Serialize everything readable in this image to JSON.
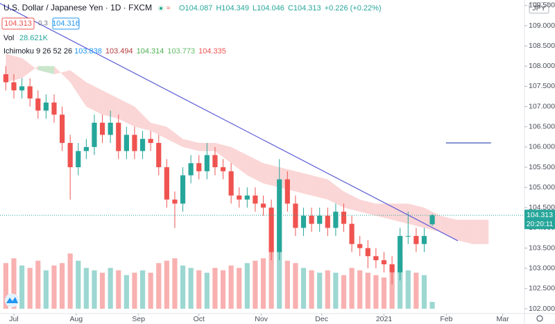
{
  "chart_data": {
    "type": "candlestick",
    "title": "U.S. Dollar / Japanese Yen · 1D · FXCM",
    "ohlc_readout": [
      "O104.087",
      "H104.349",
      "L104.046",
      "C104.313",
      "+0.226 (+0.22%)"
    ],
    "readout_color": "#26a69a",
    "trade_buttons": {
      "sell": "104.313",
      "spread": "0.3",
      "buy": "104.316"
    },
    "volume_legend": {
      "name": "Vol",
      "value": "28.621K"
    },
    "ichimoku_legend": {
      "name": "Ichimoku 9 26 52 26",
      "values": [
        "103.838",
        "103.494",
        "104.314",
        "103.773",
        "104.335"
      ],
      "colors": [
        "#2196f3",
        "#b23a3a",
        "#4caf50",
        "#66bb6a",
        "#ef5350"
      ]
    },
    "currency": "JPY",
    "last_price_label": "104.313",
    "countdown": "20:20:11",
    "x": [
      -4,
      0,
      4,
      8,
      12,
      16,
      20,
      24,
      28,
      32,
      36,
      40,
      44,
      48,
      52,
      56,
      60,
      64,
      68,
      72,
      76,
      80,
      84,
      88,
      92,
      96,
      100,
      104,
      108,
      112,
      116,
      120,
      124,
      128,
      132,
      136,
      140,
      144,
      148,
      152,
      156,
      160,
      164,
      168,
      172,
      176,
      180,
      184,
      188,
      192,
      196,
      200,
      204,
      208
    ],
    "open": [
      107.8,
      107.6,
      107.4,
      107.5,
      107.2,
      106.9,
      107.1,
      106.8,
      106.1,
      105.5,
      105.9,
      106.0,
      106.6,
      106.3,
      106.6,
      105.9,
      106.3,
      105.9,
      106.2,
      106.1,
      105.5,
      104.7,
      104.6,
      105.3,
      105.6,
      105.4,
      105.8,
      105.5,
      105.4,
      104.8,
      104.7,
      104.8,
      104.6,
      104.5,
      103.4,
      105.2,
      104.6,
      104.0,
      104.3,
      104.1,
      104.3,
      104.0,
      104.4,
      104.1,
      103.6,
      103.5,
      103.3,
      103.2,
      103.1,
      102.9,
      103.8,
      103.8,
      103.6,
      104.087
    ],
    "high": [
      108.0,
      107.8,
      107.7,
      107.7,
      107.4,
      107.3,
      107.3,
      107.0,
      106.3,
      106.1,
      106.2,
      106.8,
      106.8,
      106.9,
      106.8,
      106.5,
      106.5,
      106.4,
      106.4,
      106.3,
      105.7,
      104.9,
      105.5,
      105.8,
      105.8,
      106.1,
      106.0,
      105.7,
      105.6,
      105.0,
      105.0,
      105.0,
      104.8,
      104.7,
      105.7,
      105.4,
      104.8,
      104.5,
      104.5,
      104.5,
      104.5,
      104.6,
      104.6,
      104.3,
      103.8,
      103.7,
      103.5,
      103.4,
      103.3,
      104.0,
      104.4,
      104.0,
      104.0,
      104.349
    ],
    "low": [
      107.4,
      107.2,
      107.2,
      107.0,
      106.7,
      106.7,
      106.6,
      105.9,
      104.7,
      105.3,
      105.7,
      105.8,
      106.1,
      106.1,
      105.7,
      105.7,
      105.7,
      105.7,
      105.9,
      105.3,
      104.5,
      104.0,
      104.4,
      105.1,
      105.2,
      105.2,
      105.3,
      105.2,
      104.6,
      104.5,
      104.5,
      104.4,
      104.3,
      103.2,
      103.2,
      104.4,
      103.8,
      103.8,
      103.9,
      103.9,
      103.8,
      103.8,
      103.9,
      103.4,
      103.3,
      103.0,
      103.0,
      102.9,
      102.6,
      102.7,
      103.6,
      103.4,
      103.4,
      104.046
    ],
    "close": [
      107.6,
      107.4,
      107.5,
      107.2,
      106.9,
      107.1,
      106.8,
      106.1,
      105.5,
      105.9,
      106.0,
      106.6,
      106.3,
      106.6,
      105.9,
      106.3,
      105.9,
      106.2,
      106.1,
      105.5,
      104.7,
      104.6,
      105.3,
      105.6,
      105.4,
      105.8,
      105.5,
      105.4,
      104.8,
      104.7,
      104.8,
      104.6,
      104.5,
      103.4,
      105.2,
      104.6,
      104.0,
      104.3,
      104.1,
      104.3,
      104.0,
      104.4,
      104.1,
      103.6,
      103.5,
      103.3,
      103.2,
      103.1,
      102.9,
      103.8,
      103.8,
      103.6,
      103.8,
      104.313
    ],
    "volume": [
      190000,
      210000,
      180000,
      170000,
      200000,
      160000,
      180000,
      190000,
      230000,
      200000,
      170000,
      160000,
      150000,
      170000,
      160000,
      140000,
      150000,
      160000,
      150000,
      190000,
      200000,
      210000,
      180000,
      170000,
      160000,
      150000,
      170000,
      160000,
      180000,
      170000,
      190000,
      200000,
      210000,
      260000,
      240000,
      200000,
      190000,
      170000,
      160000,
      150000,
      160000,
      150000,
      140000,
      170000,
      160000,
      150000,
      140000,
      130000,
      180000,
      200000,
      160000,
      150000,
      140000,
      28621
    ],
    "up_color": "#26a69a",
    "down_color": "#ef5350",
    "cloud": {
      "x": [
        -4,
        4,
        12,
        20,
        28,
        36,
        44,
        52,
        60,
        68,
        76,
        84,
        92,
        100,
        108,
        116,
        124,
        132,
        140,
        148,
        156,
        164,
        172,
        180,
        188,
        196,
        204,
        212,
        220,
        228,
        236
      ],
      "span_a": [
        107.6,
        107.7,
        108.0,
        108.0,
        107.6,
        107.0,
        106.8,
        106.7,
        106.5,
        106.4,
        106.2,
        106.0,
        105.9,
        105.9,
        105.6,
        105.3,
        105.1,
        105.0,
        104.9,
        104.8,
        104.7,
        104.5,
        104.4,
        104.3,
        104.2,
        104.1,
        104.0,
        103.9,
        103.7,
        103.6,
        103.6
      ],
      "span_b": [
        108.3,
        108.2,
        107.9,
        107.8,
        107.9,
        107.6,
        107.4,
        107.2,
        107.0,
        106.6,
        106.5,
        106.2,
        106.1,
        106.1,
        106.0,
        105.8,
        105.6,
        105.5,
        105.4,
        105.3,
        105.2,
        104.9,
        104.7,
        104.6,
        104.6,
        104.6,
        104.5,
        104.3,
        104.2,
        104.2,
        104.2
      ],
      "bull_color": "#a5d6a7",
      "bear_color": "#f8bbbb"
    },
    "trendline": {
      "x": [
        -6.9,
        220.7
      ],
      "y": [
        109.55,
        103.68
      ],
      "color": "#5b5bd6"
    },
    "hline": {
      "x": [
        214.8,
        237.2
      ],
      "y": [
        106.1,
        106.1
      ],
      "color": "#3f51b5"
    },
    "xlim": [
      -6.9,
      253.5
    ],
    "xticks": [
      {
        "value": 0,
        "label": "Jul"
      },
      {
        "value": 31,
        "label": "Aug"
      },
      {
        "value": 62,
        "label": "Sep"
      },
      {
        "value": 92,
        "label": "Oct"
      },
      {
        "value": 123,
        "label": "Nov"
      },
      {
        "value": 153,
        "label": "Dec"
      },
      {
        "value": 184,
        "label": "2021"
      },
      {
        "value": 215,
        "label": "Feb"
      },
      {
        "value": 243,
        "label": "Mar"
      }
    ],
    "ylim": [
      101.88,
      109.635
    ],
    "yticks": [
      {
        "value": 102,
        "label": "102.000"
      },
      {
        "value": 102.5,
        "label": "102.500"
      },
      {
        "value": 103,
        "label": "103.000"
      },
      {
        "value": 103.5,
        "label": "103.500"
      },
      {
        "value": 104,
        "label": "104.000"
      },
      {
        "value": 104.5,
        "label": "104.500"
      },
      {
        "value": 105,
        "label": "105.000"
      },
      {
        "value": 105.5,
        "label": "105.500"
      },
      {
        "value": 106,
        "label": "106.000"
      },
      {
        "value": 106.5,
        "label": "106.500"
      },
      {
        "value": 107,
        "label": "107.000"
      },
      {
        "value": 107.5,
        "label": "107.500"
      },
      {
        "value": 108,
        "label": "108.000"
      },
      {
        "value": 108.5,
        "label": "108.500"
      },
      {
        "value": 109,
        "label": "109.000"
      },
      {
        "value": 109.5,
        "label": "109.500"
      }
    ]
  }
}
